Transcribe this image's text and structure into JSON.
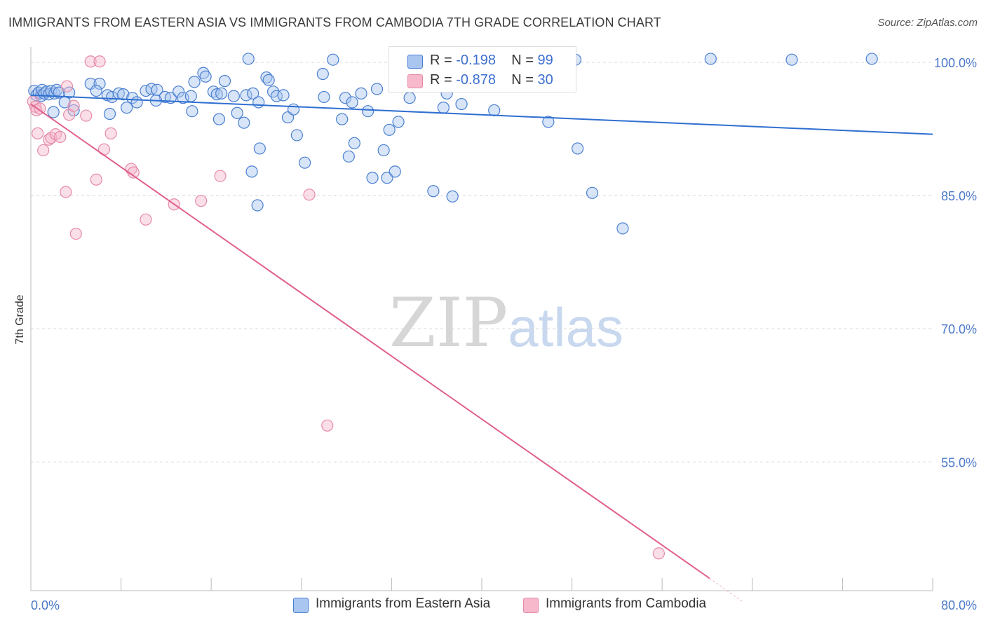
{
  "title": "IMMIGRANTS FROM EASTERN ASIA VS IMMIGRANTS FROM CAMBODIA 7TH GRADE CORRELATION CHART",
  "source": "Source: ZipAtlas.com",
  "watermark": {
    "part1": "ZIP",
    "part2": "atlas"
  },
  "legend_top": [
    {
      "r_label": "R =",
      "r_value": "-0.198",
      "n_label": "N =",
      "n_value": "99"
    },
    {
      "r_label": "R =",
      "r_value": "-0.878",
      "n_label": "N =",
      "n_value": "30"
    }
  ],
  "legend_bottom": [
    {
      "label": "Immigrants from Eastern Asia"
    },
    {
      "label": "Immigrants from Cambodia"
    }
  ],
  "colors": {
    "blue_fill": "#a9c6f0",
    "blue_stroke": "#4a7fd0",
    "blue_line": "#2f6fd0",
    "pink_fill": "#f7b8cb",
    "pink_stroke": "#e58aa8",
    "pink_line": "#e0608e",
    "grid": "#d8d8d8",
    "tick_text": "#4a78c8"
  },
  "chart_data": {
    "type": "scatter",
    "title": "IMMIGRANTS FROM EASTERN ASIA VS IMMIGRANTS FROM CAMBODIA 7TH GRADE CORRELATION CHART",
    "xlabel": "",
    "ylabel": "7th Grade",
    "xlim": [
      0,
      80
    ],
    "ylim": [
      40.5,
      101.5
    ],
    "x_tick_labels": [
      "0.0%",
      "80.0%"
    ],
    "y_ticks": [
      55,
      70,
      85,
      100
    ],
    "y_tick_labels": [
      "55.0%",
      "70.0%",
      "85.0%",
      "100.0%"
    ],
    "grid": true,
    "legend_position": "bottom",
    "series": [
      {
        "name": "Immigrants from Eastern Asia",
        "color": "#a9c6f0",
        "trend": {
          "x": [
            0,
            80
          ],
          "y": [
            96.3,
            91.9
          ]
        },
        "points": [
          [
            0.3,
            96.8
          ],
          [
            0.5,
            96.3
          ],
          [
            0.7,
            96.6
          ],
          [
            0.9,
            96.2
          ],
          [
            1.0,
            96.9
          ],
          [
            1.2,
            96.5
          ],
          [
            1.4,
            96.7
          ],
          [
            1.6,
            96.4
          ],
          [
            1.8,
            96.8
          ],
          [
            2.1,
            96.5
          ],
          [
            2.3,
            96.9
          ],
          [
            2.5,
            96.6
          ],
          [
            3.4,
            96.6
          ],
          [
            3.0,
            95.5
          ],
          [
            2.0,
            94.4
          ],
          [
            3.8,
            94.6
          ],
          [
            5.3,
            97.6
          ],
          [
            6.1,
            97.6
          ],
          [
            5.8,
            96.8
          ],
          [
            6.8,
            96.3
          ],
          [
            7.2,
            96.1
          ],
          [
            7.8,
            96.5
          ],
          [
            8.2,
            96.4
          ],
          [
            9.0,
            96.0
          ],
          [
            8.5,
            94.9
          ],
          [
            10.2,
            96.8
          ],
          [
            10.7,
            97.0
          ],
          [
            11.2,
            96.9
          ],
          [
            11.9,
            96.1
          ],
          [
            12.4,
            96.0
          ],
          [
            13.1,
            96.7
          ],
          [
            13.5,
            96.0
          ],
          [
            14.2,
            96.2
          ],
          [
            14.5,
            97.8
          ],
          [
            14.3,
            94.5
          ],
          [
            15.3,
            98.8
          ],
          [
            15.5,
            98.4
          ],
          [
            16.2,
            96.7
          ],
          [
            16.5,
            96.4
          ],
          [
            16.9,
            96.5
          ],
          [
            17.2,
            97.9
          ],
          [
            18.0,
            96.2
          ],
          [
            18.3,
            94.3
          ],
          [
            19.1,
            96.3
          ],
          [
            19.3,
            100.4
          ],
          [
            19.7,
            96.5
          ],
          [
            20.2,
            95.5
          ],
          [
            20.9,
            98.3
          ],
          [
            21.1,
            98.0
          ],
          [
            21.5,
            96.7
          ],
          [
            21.8,
            96.2
          ],
          [
            22.4,
            96.3
          ],
          [
            22.8,
            93.8
          ],
          [
            23.3,
            94.7
          ],
          [
            23.6,
            91.8
          ],
          [
            18.9,
            93.2
          ],
          [
            20.3,
            90.3
          ],
          [
            19.6,
            87.7
          ],
          [
            20.1,
            83.9
          ],
          [
            24.3,
            88.7
          ],
          [
            26.0,
            96.1
          ],
          [
            25.9,
            98.7
          ],
          [
            26.8,
            100.3
          ],
          [
            27.6,
            93.6
          ],
          [
            28.2,
            89.4
          ],
          [
            28.7,
            90.9
          ],
          [
            27.9,
            96.0
          ],
          [
            28.5,
            95.5
          ],
          [
            29.3,
            96.5
          ],
          [
            29.9,
            94.5
          ],
          [
            30.7,
            97.0
          ],
          [
            30.3,
            87.0
          ],
          [
            31.8,
            92.4
          ],
          [
            31.3,
            90.1
          ],
          [
            31.6,
            87.0
          ],
          [
            32.3,
            87.7
          ],
          [
            32.6,
            93.3
          ],
          [
            34.2,
            100.4
          ],
          [
            35.7,
            85.5
          ],
          [
            37.4,
            84.9
          ],
          [
            36.6,
            94.9
          ],
          [
            41.1,
            94.6
          ],
          [
            42.5,
            100.2
          ],
          [
            43.0,
            100.3
          ],
          [
            36.9,
            96.5
          ],
          [
            38.2,
            95.3
          ],
          [
            45.9,
            93.3
          ],
          [
            48.3,
            100.3
          ],
          [
            48.5,
            90.3
          ],
          [
            49.8,
            85.3
          ],
          [
            52.5,
            81.3
          ],
          [
            60.3,
            100.4
          ],
          [
            67.5,
            100.3
          ],
          [
            74.6,
            100.4
          ],
          [
            16.7,
            93.6
          ],
          [
            11.1,
            95.7
          ],
          [
            9.4,
            95.5
          ],
          [
            7.0,
            94.2
          ],
          [
            33.6,
            96.0
          ]
        ]
      },
      {
        "name": "Immigrants from Cambodia",
        "color": "#f7b8cb",
        "trend": {
          "x": [
            0,
            60.2
          ],
          "y": [
            95.3,
            41.9
          ]
        },
        "points": [
          [
            0.2,
            95.6
          ],
          [
            0.4,
            95.0
          ],
          [
            0.5,
            94.6
          ],
          [
            0.8,
            94.8
          ],
          [
            0.6,
            92.0
          ],
          [
            1.1,
            90.1
          ],
          [
            1.6,
            91.3
          ],
          [
            1.8,
            91.5
          ],
          [
            2.2,
            91.9
          ],
          [
            2.6,
            91.6
          ],
          [
            3.4,
            94.1
          ],
          [
            3.8,
            95.1
          ],
          [
            3.2,
            97.3
          ],
          [
            4.9,
            94.0
          ],
          [
            5.3,
            100.1
          ],
          [
            6.1,
            100.1
          ],
          [
            6.5,
            90.2
          ],
          [
            7.1,
            92.0
          ],
          [
            8.9,
            88.0
          ],
          [
            9.1,
            87.6
          ],
          [
            10.2,
            82.3
          ],
          [
            12.7,
            84.0
          ],
          [
            15.1,
            84.4
          ],
          [
            16.8,
            87.2
          ],
          [
            24.7,
            85.1
          ],
          [
            26.3,
            59.1
          ],
          [
            55.7,
            44.7
          ],
          [
            4.0,
            80.7
          ],
          [
            5.8,
            86.8
          ],
          [
            3.1,
            85.4
          ]
        ]
      }
    ]
  }
}
